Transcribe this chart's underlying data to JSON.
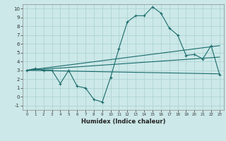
{
  "title": "",
  "xlabel": "Humidex (Indice chaleur)",
  "background_color": "#cce8e8",
  "grid_color": "#aad0d0",
  "line_color": "#1a6b6b",
  "xlim": [
    -0.5,
    23.5
  ],
  "ylim": [
    -1.5,
    10.5
  ],
  "xticks": [
    0,
    1,
    2,
    3,
    4,
    5,
    6,
    7,
    8,
    9,
    10,
    11,
    12,
    13,
    14,
    15,
    16,
    17,
    18,
    19,
    20,
    21,
    22,
    23
  ],
  "yticks": [
    -1,
    0,
    1,
    2,
    3,
    4,
    5,
    6,
    7,
    8,
    9,
    10
  ],
  "line1_x": [
    0,
    1,
    2,
    3,
    4,
    5,
    6,
    7,
    8,
    9,
    10,
    11,
    12,
    13,
    14,
    15,
    16,
    17,
    18,
    19,
    20,
    21,
    22,
    23
  ],
  "line1_y": [
    3.0,
    3.2,
    3.0,
    3.0,
    1.5,
    3.0,
    1.2,
    1.0,
    -0.3,
    -0.6,
    2.2,
    5.5,
    8.5,
    9.2,
    9.2,
    10.2,
    9.5,
    7.8,
    7.0,
    4.7,
    4.8,
    4.3,
    5.8,
    2.5
  ],
  "line2_x": [
    0,
    23
  ],
  "line2_y": [
    3.0,
    5.8
  ],
  "line3_x": [
    0,
    23
  ],
  "line3_y": [
    3.0,
    4.5
  ],
  "line4_x": [
    0,
    23
  ],
  "line4_y": [
    3.0,
    2.6
  ]
}
